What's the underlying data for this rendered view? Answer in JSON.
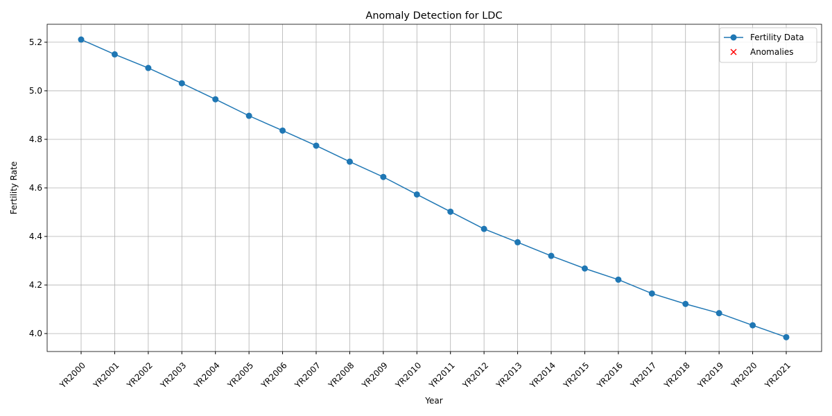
{
  "chart_data": {
    "type": "line",
    "title": "Anomaly Detection for LDC",
    "x_label": "Year",
    "y_label": "Fertility Rate",
    "categories": [
      "YR2000",
      "YR2001",
      "YR2002",
      "YR2003",
      "YR2004",
      "YR2005",
      "YR2006",
      "YR2007",
      "YR2008",
      "YR2009",
      "YR2010",
      "YR2011",
      "YR2012",
      "YR2013",
      "YR2014",
      "YR2015",
      "YR2016",
      "YR2017",
      "YR2018",
      "YR2019",
      "YR2020",
      "YR2021"
    ],
    "series": [
      {
        "name": "Fertility Data",
        "color": "#1f77b4",
        "marker": "o",
        "values": [
          5.211,
          5.15,
          5.094,
          5.031,
          4.965,
          4.897,
          4.836,
          4.774,
          4.708,
          4.645,
          4.573,
          4.502,
          4.431,
          4.376,
          4.32,
          4.268,
          4.222,
          4.165,
          4.122,
          4.084,
          4.034,
          3.985
        ]
      },
      {
        "name": "Anomalies",
        "color": "#ff0000",
        "marker": "x",
        "values": [
          null,
          null,
          null,
          null,
          null,
          null,
          null,
          null,
          null,
          null,
          null,
          null,
          null,
          null,
          null,
          null,
          null,
          null,
          null,
          null,
          null,
          null
        ]
      }
    ],
    "ylim": [
      3.926,
      5.274
    ],
    "yticks": [
      {
        "value": 4.0,
        "label": "4.0"
      },
      4.2,
      4.4,
      4.6,
      4.8,
      {
        "value": 5.0,
        "label": "5.0"
      },
      5.2
    ],
    "grid": true,
    "legend": "upper right"
  }
}
